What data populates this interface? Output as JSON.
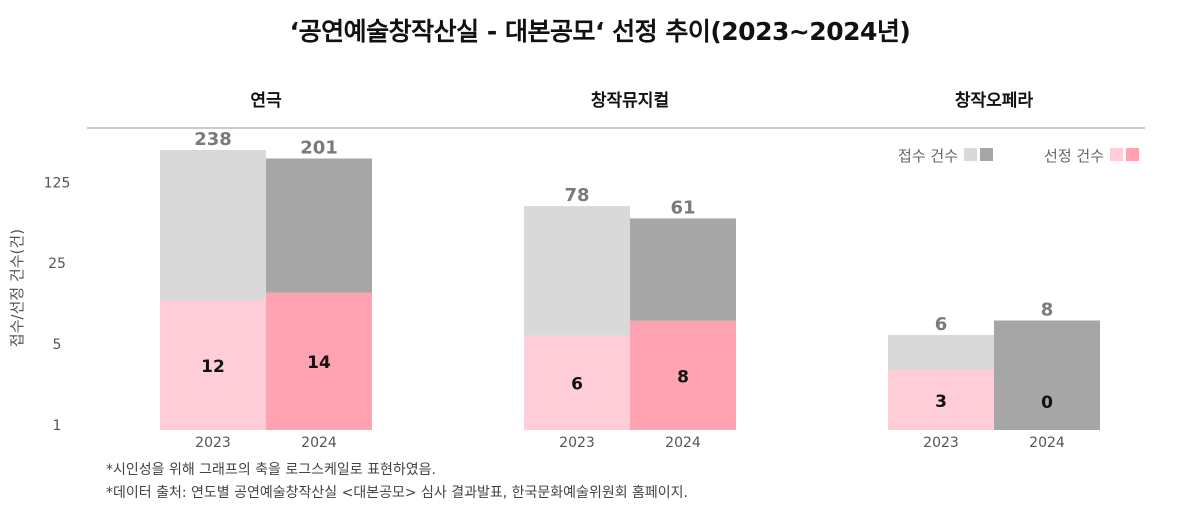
{
  "title": "‘공연예술창작산실 - 대본공모‘ 선정 추이(2023~2024년)",
  "notes": [
    "*시인성을 위해 그래프의 축을 로그스케일로 표현하였음.",
    "*데이터 출처: 연도별 공연예술창작산실 <대본공모> 심사 결과발표, 한국문화예술위원회 홈페이지."
  ],
  "colors": {
    "received_2023": "#d9d9d9",
    "received_2024": "#a6a6a6",
    "selected_2023": "#ffcdd7",
    "selected_2024": "#ffa2b1"
  },
  "chart_data": {
    "type": "bar",
    "scale": "log",
    "ylabel": "접수/선정 건수(건)",
    "yticks": [
      "1",
      "5",
      "25",
      "125"
    ],
    "ylim": [
      1,
      240
    ],
    "legend": {
      "position": "top-right",
      "items": [
        {
          "label": "접수 건수",
          "swatches": [
            "#d9d9d9",
            "#a6a6a6"
          ]
        },
        {
          "label": "선정 건수",
          "swatches": [
            "#ffcdd7",
            "#ffa2b1"
          ]
        }
      ]
    },
    "groups": [
      {
        "name": "연극",
        "years": [
          "2023",
          "2024"
        ],
        "received": [
          238,
          201
        ],
        "selected": [
          12,
          14
        ]
      },
      {
        "name": "창작뮤지컬",
        "years": [
          "2023",
          "2024"
        ],
        "received": [
          78,
          61
        ],
        "selected": [
          6,
          8
        ]
      },
      {
        "name": "창작오페라",
        "years": [
          "2023",
          "2024"
        ],
        "received": [
          6,
          8
        ],
        "selected": [
          3,
          0
        ]
      }
    ]
  }
}
